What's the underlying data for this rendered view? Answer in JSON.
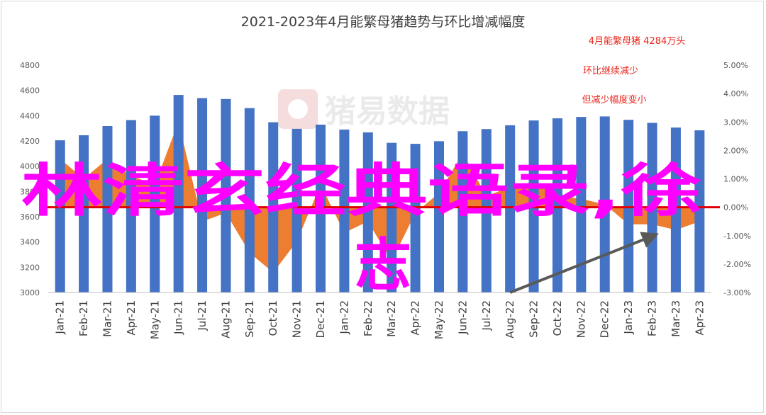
{
  "chart_data": {
    "type": "bar",
    "title": "2021-2023年4月能繁母猪趋势与环比增减幅度",
    "categories": [
      "Jan-21",
      "Feb-21",
      "Mar-21",
      "Apr-21",
      "May-21",
      "Jun-21",
      "Jul-21",
      "Aug-21",
      "Sep-21",
      "Oct-21",
      "Nov-21",
      "Dec-21",
      "Jan-22",
      "Feb-22",
      "Mar-22",
      "Apr-22",
      "May-22",
      "Jun-22",
      "Jul-22",
      "Aug-22",
      "Sep-22",
      "Oct-22",
      "Nov-22",
      "Dec-22",
      "Jan-23",
      "Feb-23",
      "Mar-23",
      "Apr-23"
    ],
    "series": [
      {
        "type": "bar",
        "color": "#4472c4",
        "axis": "left",
        "values": [
          4205,
          4245,
          4318,
          4365,
          4400,
          4564,
          4539,
          4532,
          4460,
          4348,
          4296,
          4329,
          4290,
          4268,
          4185,
          4177,
          4198,
          4277,
          4294,
          4324,
          4362,
          4379,
          4390,
          4394,
          4367,
          4343,
          4306,
          4284
        ]
      },
      {
        "type": "area",
        "color": "#ed7d31",
        "axis": "right",
        "values": [
          1.7,
          1.0,
          1.7,
          1.1,
          0.8,
          3.0,
          -0.5,
          -0.2,
          -1.6,
          -2.3,
          -1.2,
          0.8,
          -0.9,
          -0.5,
          -1.9,
          -0.2,
          0.5,
          1.9,
          0.4,
          0.7,
          0.9,
          0.4,
          0.3,
          0.1,
          -0.6,
          -0.6,
          -0.8,
          -0.5
        ]
      }
    ],
    "ylim": [
      3000,
      4800
    ],
    "yticks": [
      "4800",
      "4600",
      "4400",
      "4200",
      "4000",
      "3800",
      "3600",
      "3400",
      "3200",
      "3000"
    ],
    "y2lim": [
      -3,
      5
    ],
    "y2ticks": [
      "5.00%",
      "4.00%",
      "3.00%",
      "2.00%",
      "1.00%",
      "0.00%",
      "-1.00%",
      "-2.00%",
      "-3.00%"
    ],
    "annotations": [
      "4月能繁母猪 4284万头",
      "环比继续减少",
      "但减少幅度变小"
    ],
    "annotation_color": "#e8261c",
    "reference_line": {
      "y2": 0,
      "color": "#e00000"
    },
    "trend_arrow": {
      "color": "#595959",
      "from": {
        "x": "Aug-22",
        "y2": -3.0
      },
      "to": {
        "x": "Feb-23",
        "y2": -1.0
      }
    },
    "watermark": "猪易数据",
    "grid": false
  },
  "overlay": {
    "line1": "林清玄经典语录,徐",
    "line2": "志",
    "color": "#ff00ff"
  }
}
